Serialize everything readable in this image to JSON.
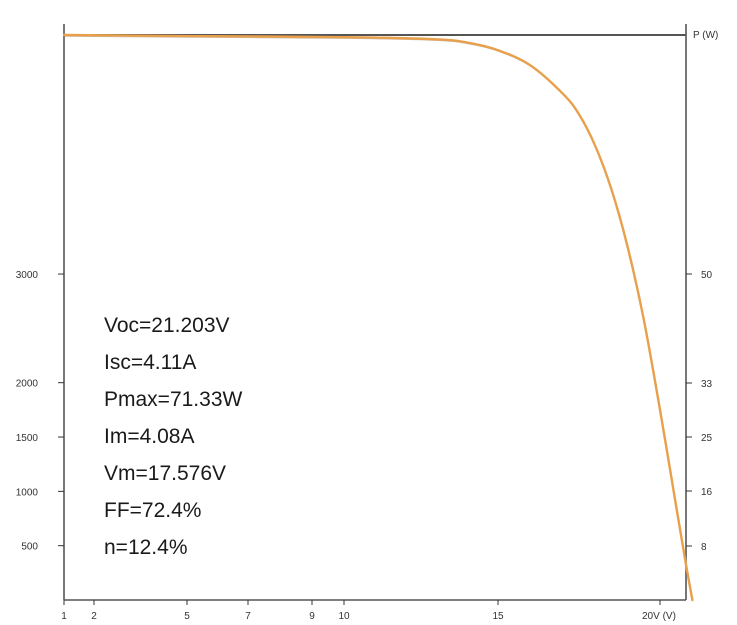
{
  "chart_data": {
    "type": "line",
    "title": "",
    "x_axis": {
      "ticks": [
        {
          "value": 1,
          "label": "1"
        },
        {
          "value": 2,
          "label": "2"
        },
        {
          "value": 5,
          "label": "5"
        },
        {
          "value": 7,
          "label": "7"
        },
        {
          "value": 9,
          "label": "9"
        },
        {
          "value": 10,
          "label": "10"
        },
        {
          "value": 15,
          "label": "15"
        },
        {
          "value": 20,
          "label": "20V (V)"
        }
      ],
      "range": [
        1,
        21
      ]
    },
    "left_axis": {
      "ticks": [
        {
          "value": 500,
          "label": "500"
        },
        {
          "value": 1000,
          "label": "1000"
        },
        {
          "value": 1500,
          "label": "1500"
        },
        {
          "value": 2000,
          "label": "2000"
        },
        {
          "value": 3000,
          "label": "3000"
        }
      ]
    },
    "right_axis": {
      "label": "P (W)",
      "ticks": [
        {
          "value": 8,
          "label": "8"
        },
        {
          "value": 16,
          "label": "16"
        },
        {
          "value": 25,
          "label": "25"
        },
        {
          "value": 33,
          "label": "33"
        },
        {
          "value": 50,
          "label": "50"
        }
      ]
    },
    "ylim": [
      0,
      5200
    ],
    "grid": false,
    "series": [
      {
        "color": "#e8a04c",
        "x": [
          1,
          5,
          10,
          13,
          14,
          15,
          16,
          17,
          17.5,
          18,
          18.5,
          19,
          19.5,
          20,
          20.5,
          20.8,
          21
        ],
        "y": [
          5200,
          5190,
          5180,
          5160,
          5130,
          5060,
          4920,
          4660,
          4470,
          4180,
          3780,
          3250,
          2580,
          1750,
          860,
          330,
          0
        ]
      }
    ],
    "annotations": [
      "Voc=21.203V",
      "Isc=4.11A",
      "Pmax=71.33W",
      "Im=4.08A",
      "Vm=17.576V",
      "FF=72.4%",
      "n=12.4%"
    ]
  },
  "colors": {
    "curve": "#e8a04c",
    "axes": "#333333",
    "frame": "#555555",
    "text": "#1a1a1a"
  }
}
